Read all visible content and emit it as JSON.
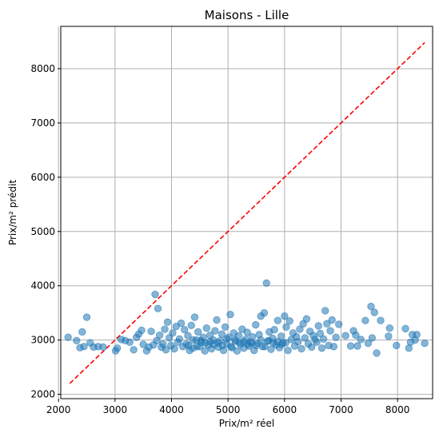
{
  "chart_data": {
    "type": "scatter",
    "title": "Maisons - Lille",
    "xlabel": "Prix/m² réel",
    "ylabel": "Prix/m² prédit",
    "xlim": [
      2040,
      8620
    ],
    "ylim": [
      1920,
      8780
    ],
    "xticks": [
      2000,
      3000,
      4000,
      5000,
      6000,
      7000,
      8000
    ],
    "yticks": [
      2000,
      3000,
      4000,
      5000,
      6000,
      7000,
      8000
    ],
    "grid": true,
    "point_color": "#1f77b4",
    "reference_line": {
      "style": "dashed",
      "color": "#ff0000",
      "from": [
        2200,
        2200
      ],
      "to": [
        8480,
        8480
      ]
    },
    "points": [
      [
        2170,
        3050
      ],
      [
        2320,
        2990
      ],
      [
        2380,
        2860
      ],
      [
        2420,
        3150
      ],
      [
        2450,
        2880
      ],
      [
        2500,
        3420
      ],
      [
        2560,
        2950
      ],
      [
        2620,
        2870
      ],
      [
        2700,
        2880
      ],
      [
        2790,
        2870
      ],
      [
        3010,
        2800
      ],
      [
        3040,
        2850
      ],
      [
        3110,
        3010
      ],
      [
        3180,
        2990
      ],
      [
        3260,
        2960
      ],
      [
        3330,
        2820
      ],
      [
        3380,
        3050
      ],
      [
        3420,
        3110
      ],
      [
        3470,
        3180
      ],
      [
        3500,
        2920
      ],
      [
        3560,
        2800
      ],
      [
        3600,
        2870
      ],
      [
        3640,
        3160
      ],
      [
        3680,
        2910
      ],
      [
        3710,
        3840
      ],
      [
        3740,
        2990
      ],
      [
        3760,
        3580
      ],
      [
        3790,
        3090
      ],
      [
        3820,
        2870
      ],
      [
        3850,
        2930
      ],
      [
        3880,
        3200
      ],
      [
        3900,
        2820
      ],
      [
        3930,
        3330
      ],
      [
        3960,
        3040
      ],
      [
        3990,
        2900
      ],
      [
        4020,
        3130
      ],
      [
        4050,
        2840
      ],
      [
        4080,
        3250
      ],
      [
        4110,
        2960
      ],
      [
        4140,
        3020
      ],
      [
        4170,
        3310
      ],
      [
        4200,
        2880
      ],
      [
        4230,
        3190
      ],
      [
        4260,
        2930
      ],
      [
        4290,
        3080
      ],
      [
        4320,
        2810
      ],
      [
        4350,
        3270
      ],
      [
        4380,
        2850
      ],
      [
        4410,
        3420
      ],
      [
        4440,
        3000
      ],
      [
        4470,
        3150
      ],
      [
        4500,
        2880
      ],
      [
        4530,
        2960
      ],
      [
        4560,
        3050
      ],
      [
        4590,
        2800
      ],
      [
        4620,
        3220
      ],
      [
        4650,
        2910
      ],
      [
        4680,
        3090
      ],
      [
        4710,
        2840
      ],
      [
        4740,
        3000
      ],
      [
        4770,
        3170
      ],
      [
        4800,
        3370
      ],
      [
        4830,
        2870
      ],
      [
        4860,
        2990
      ],
      [
        4890,
        3110
      ],
      [
        4920,
        2810
      ],
      [
        4950,
        3240
      ],
      [
        4980,
        2930
      ],
      [
        5010,
        3050
      ],
      [
        5040,
        3470
      ],
      [
        5070,
        2860
      ],
      [
        5100,
        3130
      ],
      [
        5130,
        2980
      ],
      [
        5160,
        2800
      ],
      [
        5190,
        3080
      ],
      [
        5220,
        2920
      ],
      [
        5250,
        3200
      ],
      [
        5280,
        2850
      ],
      [
        5310,
        3010
      ],
      [
        5340,
        3140
      ],
      [
        5370,
        2890
      ],
      [
        5400,
        2960
      ],
      [
        5430,
        3060
      ],
      [
        5460,
        2810
      ],
      [
        5490,
        3280
      ],
      [
        5520,
        2940
      ],
      [
        5550,
        3100
      ],
      [
        5580,
        3440
      ],
      [
        5610,
        2880
      ],
      [
        5640,
        3500
      ],
      [
        5680,
        4050
      ],
      [
        5700,
        2980
      ],
      [
        5730,
        3150
      ],
      [
        5760,
        2830
      ],
      [
        5790,
        3030
      ],
      [
        5820,
        3190
      ],
      [
        5850,
        2910
      ],
      [
        5880,
        3360
      ],
      [
        5910,
        2860
      ],
      [
        5940,
        3070
      ],
      [
        5970,
        2950
      ],
      [
        6000,
        3440
      ],
      [
        6030,
        3240
      ],
      [
        6060,
        2810
      ],
      [
        6090,
        3350
      ],
      [
        6120,
        3010
      ],
      [
        6150,
        3130
      ],
      [
        6180,
        2890
      ],
      [
        6210,
        3060
      ],
      [
        6240,
        2970
      ],
      [
        6270,
        3200
      ],
      [
        6300,
        2840
      ],
      [
        6330,
        3300
      ],
      [
        6360,
        3040
      ],
      [
        6390,
        3390
      ],
      [
        6420,
        2930
      ],
      [
        6450,
        3160
      ],
      [
        6480,
        2870
      ],
      [
        6510,
        3080
      ],
      [
        6540,
        3010
      ],
      [
        6570,
        2960
      ],
      [
        6600,
        3260
      ],
      [
        6630,
        3120
      ],
      [
        6660,
        2850
      ],
      [
        6690,
        3020
      ],
      [
        6720,
        3540
      ],
      [
        6750,
        3300
      ],
      [
        6780,
        2900
      ],
      [
        6810,
        3170
      ],
      [
        6840,
        3370
      ],
      [
        6870,
        2880
      ],
      [
        6910,
        3050
      ],
      [
        6960,
        3290
      ],
      [
        7080,
        3080
      ],
      [
        7170,
        2890
      ],
      [
        7220,
        3170
      ],
      [
        7260,
        3090
      ],
      [
        7290,
        2890
      ],
      [
        7350,
        3010
      ],
      [
        7430,
        3360
      ],
      [
        7480,
        2940
      ],
      [
        7530,
        3620
      ],
      [
        7550,
        3040
      ],
      [
        7590,
        3510
      ],
      [
        7630,
        2760
      ],
      [
        7700,
        3360
      ],
      [
        7840,
        3070
      ],
      [
        7860,
        3220
      ],
      [
        7980,
        2900
      ],
      [
        8140,
        3210
      ],
      [
        8200,
        2850
      ],
      [
        8230,
        2960
      ],
      [
        8260,
        3100
      ],
      [
        8310,
        3000
      ],
      [
        8340,
        3100
      ],
      [
        8480,
        2940
      ],
      [
        4300,
        2900
      ],
      [
        4600,
        2950
      ],
      [
        4900,
        2900
      ],
      [
        5200,
        2950
      ],
      [
        5500,
        2900
      ],
      [
        5800,
        2950
      ],
      [
        4450,
        2880
      ],
      [
        4750,
        2920
      ],
      [
        5050,
        2880
      ],
      [
        5350,
        2920
      ],
      [
        5650,
        2880
      ],
      [
        5950,
        2920
      ],
      [
        4520,
        2990
      ],
      [
        4820,
        2950
      ],
      [
        5120,
        3000
      ],
      [
        5420,
        2950
      ],
      [
        5720,
        2990
      ],
      [
        6020,
        2950
      ],
      [
        4380,
        3000
      ],
      [
        4680,
        2970
      ],
      [
        4980,
        3020
      ],
      [
        5280,
        2970
      ],
      [
        5580,
        3000
      ],
      [
        5880,
        2970
      ]
    ]
  }
}
